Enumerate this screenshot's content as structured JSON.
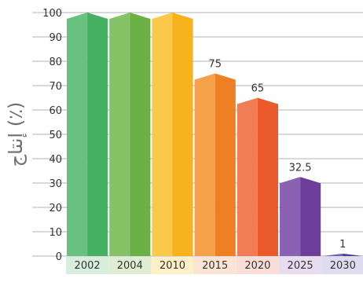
{
  "chart_data": {
    "type": "bar",
    "categories": [
      "2002",
      "2004",
      "2010",
      "2015",
      "2020",
      "2025",
      "2030"
    ],
    "values": [
      100,
      100,
      100,
      75,
      65,
      32.5,
      1
    ],
    "value_labels": [
      "",
      "",
      "",
      "75",
      "65",
      "32.5",
      "1"
    ],
    "ylabel": "إنتاج (٪)",
    "xlabel": "",
    "ylim": [
      0,
      100
    ],
    "yticks": [
      "0",
      "10",
      "20",
      "30",
      "40",
      "50",
      "60",
      "70",
      "80",
      "90",
      "100"
    ],
    "grid": true,
    "bar_colors": [
      "#45B062",
      "#6AB045",
      "#F7B31E",
      "#EE7F22",
      "#EA5A2B",
      "#6D3E9A",
      "#4B3A95"
    ],
    "bar_top_colors": [
      "#68C17E",
      "#86C367",
      "#FBC94A",
      "#F5A04B",
      "#F17D55",
      "#8A61B3",
      "#6F61B4"
    ],
    "category_band_colors": [
      "#D7EEDC",
      "#DFEED3",
      "#FFF0C7",
      "#FCE4D4",
      "#FADDD6",
      "#E7DCF0",
      "#E0DCF0"
    ]
  }
}
